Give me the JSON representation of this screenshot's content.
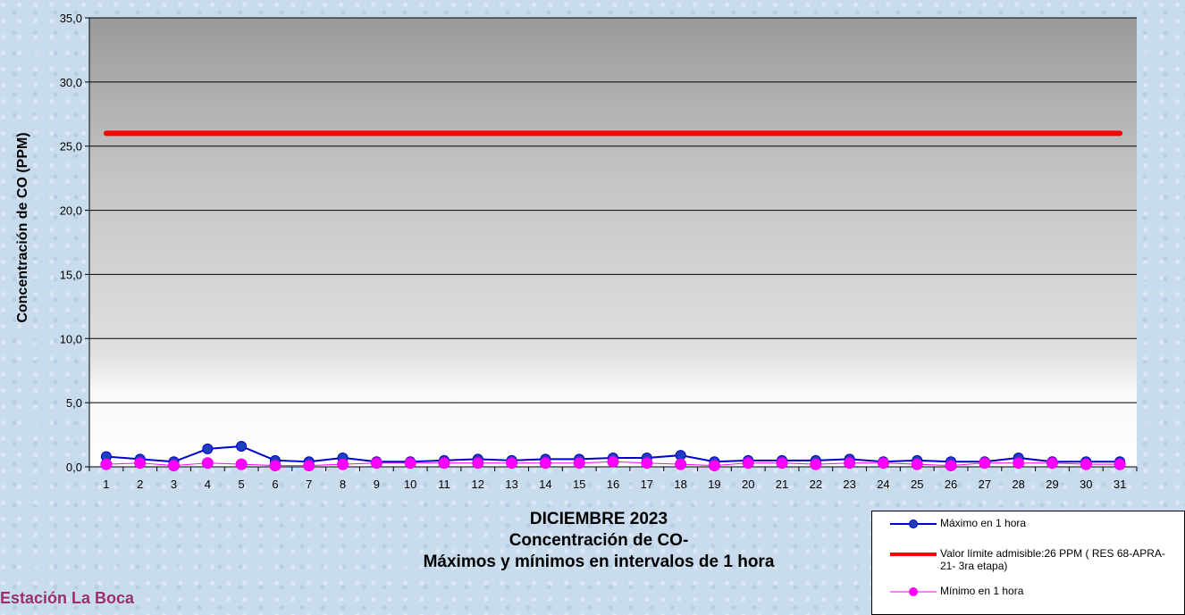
{
  "chart_data": {
    "type": "line",
    "title": "DICIEMBRE 2023",
    "subtitle_lines": [
      "Concentración de CO-",
      "Máximos y mínimos en intervalos de 1 hora"
    ],
    "xlabel": "",
    "ylabel": "Concentración de CO (PPM)",
    "ylim": [
      0,
      35
    ],
    "yticks": [
      "0,0",
      "5,0",
      "10,0",
      "15,0",
      "20,0",
      "25,0",
      "30,0",
      "35,0"
    ],
    "categories": [
      "1",
      "2",
      "3",
      "4",
      "5",
      "6",
      "7",
      "8",
      "9",
      "10",
      "11",
      "12",
      "13",
      "14",
      "15",
      "16",
      "17",
      "18",
      "19",
      "20",
      "21",
      "22",
      "23",
      "24",
      "25",
      "26",
      "27",
      "28",
      "29",
      "30",
      "31"
    ],
    "grid": true,
    "legend_position": "bottom-right",
    "series": [
      {
        "name": "Máximo en 1 hora",
        "color": "#0000cc",
        "marker_color": "#1f3fbf",
        "values": [
          0.8,
          0.6,
          0.4,
          1.4,
          1.6,
          0.5,
          0.4,
          0.7,
          0.4,
          0.4,
          0.5,
          0.6,
          0.5,
          0.6,
          0.6,
          0.7,
          0.7,
          0.9,
          0.4,
          0.5,
          0.5,
          0.5,
          0.6,
          0.4,
          0.5,
          0.4,
          0.4,
          0.7,
          0.4,
          0.4,
          0.4
        ]
      },
      {
        "name": "Valor límite admisible:26 PPM ( RES 68-APRA-21- 3ra etapa)",
        "color": "#ff0000",
        "values": [
          26,
          26,
          26,
          26,
          26,
          26,
          26,
          26,
          26,
          26,
          26,
          26,
          26,
          26,
          26,
          26,
          26,
          26,
          26,
          26,
          26,
          26,
          26,
          26,
          26,
          26,
          26,
          26,
          26,
          26,
          26
        ]
      },
      {
        "name": "Mínimo en 1 hora",
        "color": "#ff00ff",
        "values": [
          0.2,
          0.3,
          0.1,
          0.3,
          0.2,
          0.1,
          0.1,
          0.2,
          0.3,
          0.3,
          0.3,
          0.3,
          0.3,
          0.3,
          0.3,
          0.4,
          0.3,
          0.2,
          0.1,
          0.3,
          0.3,
          0.2,
          0.3,
          0.3,
          0.2,
          0.1,
          0.3,
          0.3,
          0.3,
          0.2,
          0.2
        ]
      }
    ]
  },
  "station": "Estación La Boca"
}
